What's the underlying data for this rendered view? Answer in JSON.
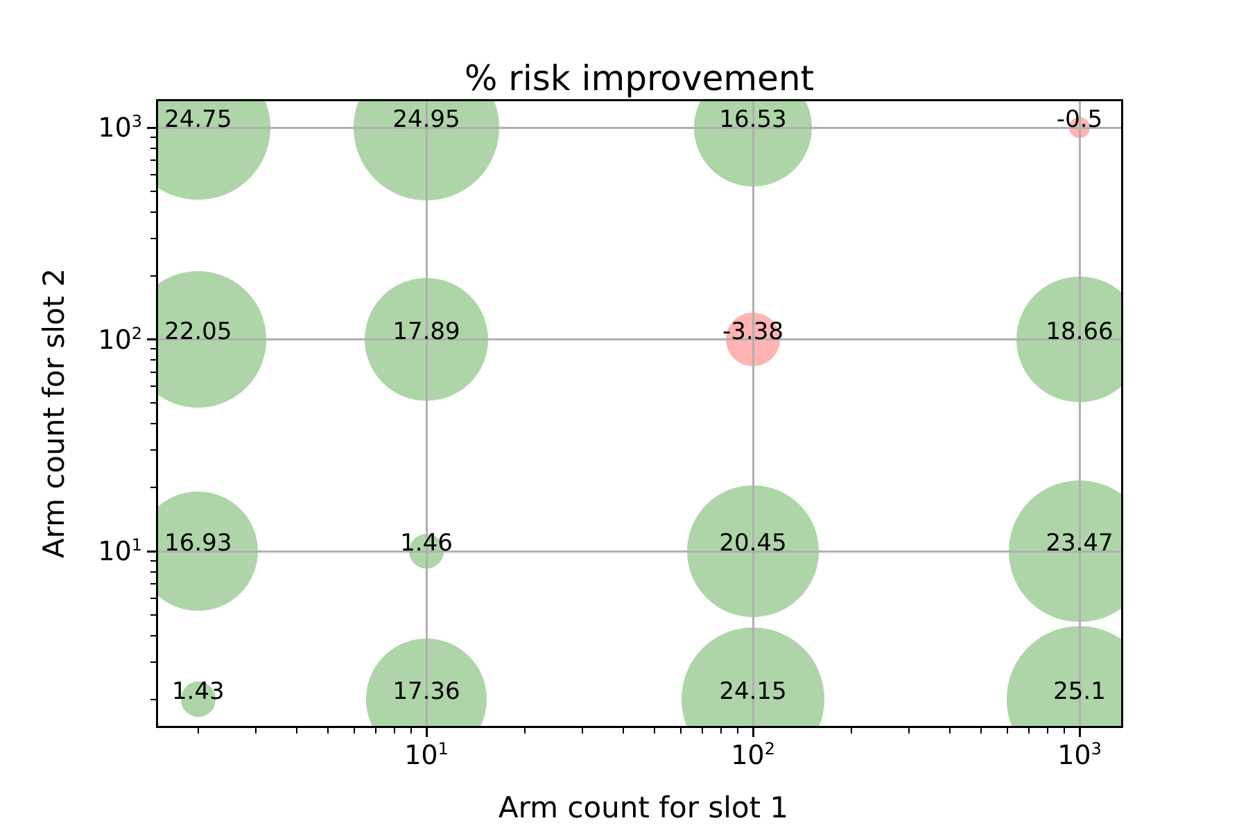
{
  "chart_data": {
    "type": "scatter",
    "subtype": "bubble",
    "title": "% risk improvement",
    "xlabel": "Arm count for slot 1",
    "ylabel": "Arm count for slot 2",
    "x_scale": "log",
    "y_scale": "log",
    "xlim": [
      1.47,
      1365
    ],
    "ylim": [
      1.47,
      1365
    ],
    "grid": true,
    "grid_over_points": true,
    "x_ticks": [
      {
        "value": 10,
        "base": "10",
        "exponent": "1"
      },
      {
        "value": 100,
        "base": "10",
        "exponent": "2"
      },
      {
        "value": 1000,
        "base": "10",
        "exponent": "3"
      }
    ],
    "y_ticks": [
      {
        "value": 10,
        "base": "10",
        "exponent": "1"
      },
      {
        "value": 100,
        "base": "10",
        "exponent": "2"
      },
      {
        "value": 1000,
        "base": "10",
        "exponent": "3"
      }
    ],
    "minor_tick_mantissas": [
      2,
      3,
      4,
      5,
      6,
      7,
      8,
      9
    ],
    "size_rule": "bubble area proportional to |value|",
    "colors": {
      "positive_fill": "#aed5a8",
      "negative_fill": "#ffb3b3",
      "grid": "#b0b0b0",
      "spine": "#000000",
      "text": "#000000",
      "background": "#ffffff"
    },
    "points": [
      {
        "x": 2,
        "y": 1000,
        "value": 24.75,
        "label": "24.75"
      },
      {
        "x": 10,
        "y": 1000,
        "value": 24.95,
        "label": "24.95"
      },
      {
        "x": 100,
        "y": 1000,
        "value": 16.53,
        "label": "16.53"
      },
      {
        "x": 1000,
        "y": 1000,
        "value": -0.5,
        "label": "-0.5"
      },
      {
        "x": 2,
        "y": 100,
        "value": 22.05,
        "label": "22.05"
      },
      {
        "x": 10,
        "y": 100,
        "value": 17.89,
        "label": "17.89"
      },
      {
        "x": 100,
        "y": 100,
        "value": -3.38,
        "label": "-3.38"
      },
      {
        "x": 1000,
        "y": 100,
        "value": 18.66,
        "label": "18.66"
      },
      {
        "x": 2,
        "y": 10,
        "value": 16.93,
        "label": "16.93"
      },
      {
        "x": 10,
        "y": 10,
        "value": 1.46,
        "label": "1.46"
      },
      {
        "x": 100,
        "y": 10,
        "value": 20.45,
        "label": "20.45"
      },
      {
        "x": 1000,
        "y": 10,
        "value": 23.47,
        "label": "23.47"
      },
      {
        "x": 2,
        "y": 2,
        "value": 1.43,
        "label": "1.43"
      },
      {
        "x": 10,
        "y": 2,
        "value": 17.36,
        "label": "17.36"
      },
      {
        "x": 100,
        "y": 2,
        "value": 24.15,
        "label": "24.15"
      },
      {
        "x": 1000,
        "y": 2,
        "value": 25.1,
        "label": "25.1"
      }
    ]
  }
}
